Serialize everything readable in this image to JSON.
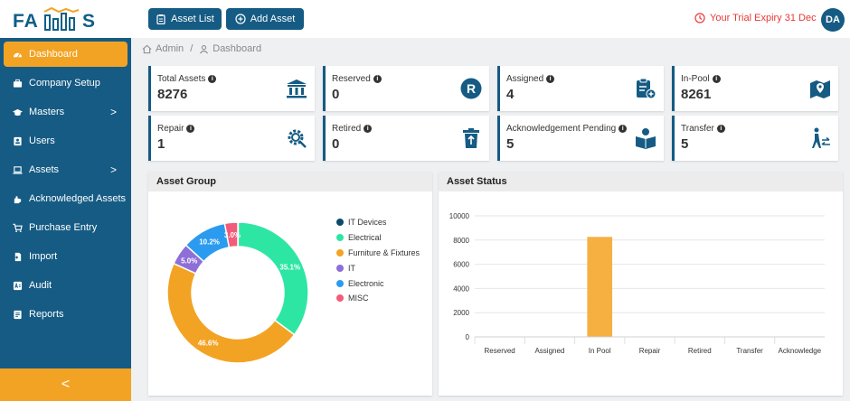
{
  "app": {
    "logo_left": "FA",
    "logo_right": "S"
  },
  "topbar": {
    "asset_list_label": "Asset List",
    "add_asset_label": "Add Asset",
    "trial_text": "Your Trial Expiry 31 Dec",
    "avatar_initials": "DA"
  },
  "sidebar": {
    "items": [
      {
        "label": "Dashboard",
        "icon": "gauge-icon",
        "active": true
      },
      {
        "label": "Company Setup",
        "icon": "briefcase-icon"
      },
      {
        "label": "Masters",
        "icon": "graduation-cap-icon",
        "chevron": ">"
      },
      {
        "label": "Users",
        "icon": "id-card-icon"
      },
      {
        "label": "Assets",
        "icon": "laptop-icon",
        "chevron": ">"
      },
      {
        "label": "Acknowledged Assets",
        "icon": "hand-icon"
      },
      {
        "label": "Purchase Entry",
        "icon": "cart-icon"
      },
      {
        "label": "Import",
        "icon": "file-import-icon"
      },
      {
        "label": "Audit",
        "icon": "audit-icon"
      },
      {
        "label": "Reports",
        "icon": "report-icon"
      }
    ],
    "collapse_glyph": "<"
  },
  "breadcrumb": {
    "root": "Admin",
    "separator": "/",
    "current": "Dashboard"
  },
  "cards": [
    {
      "label": "Total Assets",
      "value": "8276",
      "icon": "bank-icon"
    },
    {
      "label": "Reserved",
      "value": "0",
      "icon": "r-circle-icon"
    },
    {
      "label": "Assigned",
      "value": "4",
      "icon": "clipboard-plus-icon"
    },
    {
      "label": "In-Pool",
      "value": "8261",
      "icon": "map-pin-icon"
    },
    {
      "label": "Repair",
      "value": "1",
      "icon": "gear-wrench-icon"
    },
    {
      "label": "Retired",
      "value": "0",
      "icon": "trash-icon"
    },
    {
      "label": "Acknowledgement Pending",
      "value": "5",
      "icon": "book-reader-icon"
    },
    {
      "label": "Transfer",
      "value": "5",
      "icon": "person-transfer-icon"
    }
  ],
  "asset_group": {
    "title": "Asset Group",
    "legend": [
      {
        "name": "IT Devices",
        "color": "#0c4a6e"
      },
      {
        "name": "Electrical",
        "color": "#2ee6a4"
      },
      {
        "name": "Furniture & Fixtures",
        "color": "#f3a323"
      },
      {
        "name": "IT",
        "color": "#8e6fd8"
      },
      {
        "name": "Electronic",
        "color": "#2b9bf0"
      },
      {
        "name": "MISC",
        "color": "#f25c7a"
      }
    ]
  },
  "asset_status": {
    "title": "Asset Status"
  },
  "chart_data": [
    {
      "type": "pie",
      "title": "Asset Group",
      "labels": [
        "IT Devices",
        "Electrical",
        "Furniture & Fixtures",
        "IT",
        "Electronic",
        "MISC"
      ],
      "values": [
        0.1,
        35.1,
        46.6,
        5.0,
        10.2,
        3.0
      ],
      "value_labels": [
        "",
        "35.1%",
        "46.6%",
        "5.0%",
        "10.2%",
        "3.0%"
      ],
      "colors": [
        "#0c4a6e",
        "#2ee6a4",
        "#f3a323",
        "#8e6fd8",
        "#2b9bf0",
        "#f25c7a"
      ],
      "donut": true,
      "legend": "right"
    },
    {
      "type": "bar",
      "title": "Asset Status",
      "categories": [
        "Reserved",
        "Assigned",
        "In Pool",
        "Repair",
        "Retired",
        "Transfer",
        "Acknowledge"
      ],
      "values": [
        0,
        4,
        8261,
        1,
        0,
        5,
        5
      ],
      "ylim": [
        0,
        10000
      ],
      "yticks": [
        0,
        2000,
        4000,
        6000,
        8000,
        10000
      ],
      "color": "#f5b041",
      "grid": true
    }
  ]
}
